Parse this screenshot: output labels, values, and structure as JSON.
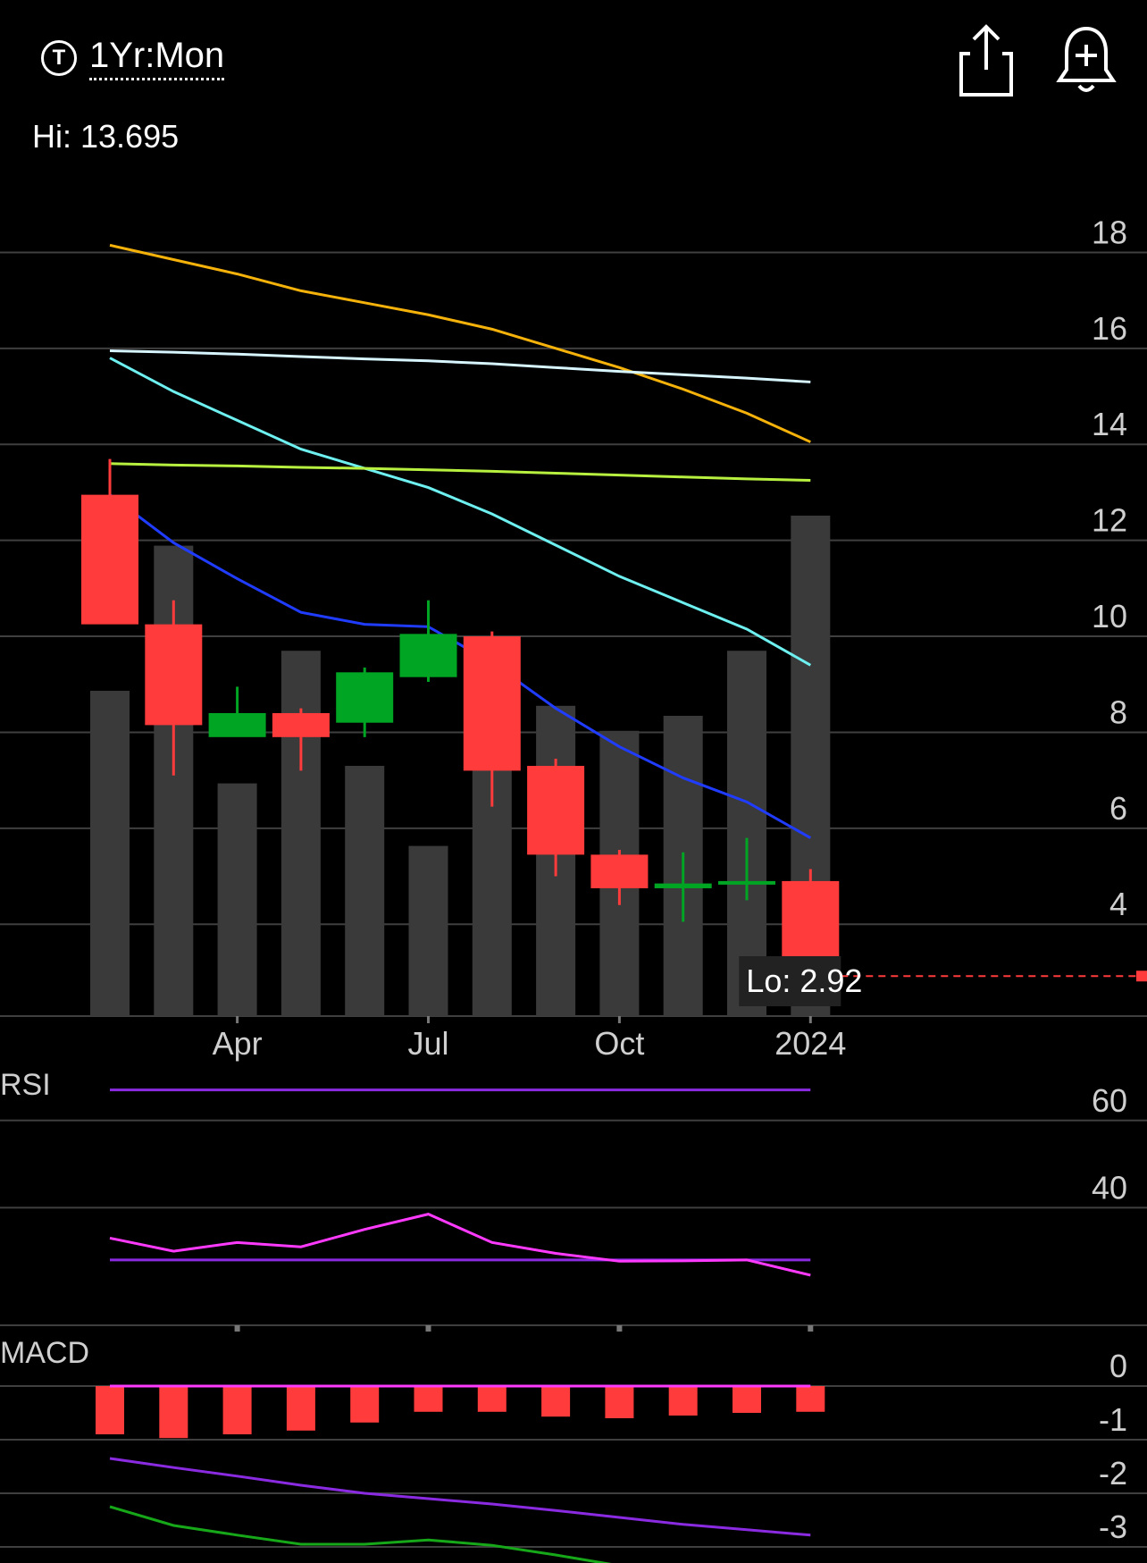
{
  "header": {
    "timeframe_icon": "T",
    "timeframe": "1Yr:Mon",
    "share_icon": "share-icon",
    "alert_icon": "bell-plus-icon"
  },
  "chart_data": {
    "type": "candlestick",
    "hi_label": "Hi: 13.695",
    "lo_label": "Lo: 2.92",
    "x_ticks": [
      "Apr",
      "Jul",
      "Oct",
      "2024"
    ],
    "y_ticks": [
      4,
      6,
      8,
      10,
      12,
      14,
      16,
      18
    ],
    "ylim": [
      1.2,
      19.5
    ],
    "last_price": 2.92,
    "colors": {
      "up": "#00a524",
      "down": "#ff3b3b",
      "volume": "#3a3a3a",
      "grid": "#3f3f3f"
    },
    "candles": [
      {
        "o": 12.95,
        "h": 13.695,
        "l": 10.3,
        "c": 10.25
      },
      {
        "o": 10.25,
        "h": 10.75,
        "l": 7.1,
        "c": 8.15
      },
      {
        "o": 7.9,
        "h": 8.95,
        "l": 7.95,
        "c": 8.4
      },
      {
        "o": 8.4,
        "h": 8.5,
        "l": 7.2,
        "c": 7.9
      },
      {
        "o": 8.2,
        "h": 9.35,
        "l": 7.9,
        "c": 9.25
      },
      {
        "o": 9.15,
        "h": 10.75,
        "l": 9.05,
        "c": 10.05
      },
      {
        "o": 10.0,
        "h": 10.1,
        "l": 6.45,
        "c": 7.2
      },
      {
        "o": 7.3,
        "h": 7.45,
        "l": 5.0,
        "c": 5.45
      },
      {
        "o": 5.45,
        "h": 5.55,
        "l": 4.4,
        "c": 4.75
      },
      {
        "o": 4.75,
        "h": 5.5,
        "l": 4.05,
        "c": 4.85
      },
      {
        "o": 4.85,
        "h": 5.8,
        "l": 4.5,
        "c": 4.9
      },
      {
        "o": 4.9,
        "h": 5.15,
        "l": 2.92,
        "c": 2.92
      }
    ],
    "volume": [
      0.65,
      0.94,
      0.465,
      0.73,
      0.5,
      0.34,
      0.73,
      0.62,
      0.57,
      0.6,
      0.73,
      1.0
    ],
    "moving_averages": [
      {
        "color": "#f5b20a",
        "values": [
          18.15,
          17.85,
          17.55,
          17.2,
          16.95,
          16.7,
          16.4,
          16.0,
          15.6,
          15.15,
          14.65,
          14.05
        ]
      },
      {
        "color": "#d6f5ff",
        "values": [
          15.95,
          15.92,
          15.88,
          15.83,
          15.78,
          15.74,
          15.68,
          15.6,
          15.52,
          15.45,
          15.38,
          15.3
        ]
      },
      {
        "color": "#6ef0f0",
        "values": [
          15.8,
          15.1,
          14.5,
          13.9,
          13.5,
          13.1,
          12.55,
          11.9,
          11.25,
          10.7,
          10.15,
          9.4
        ]
      },
      {
        "color": "#b8f040",
        "values": [
          13.6,
          13.57,
          13.55,
          13.52,
          13.5,
          13.47,
          13.44,
          13.4,
          13.36,
          13.32,
          13.28,
          13.25
        ]
      },
      {
        "color": "#1f3cff",
        "values": [
          12.95,
          11.95,
          11.2,
          10.5,
          10.25,
          10.2,
          9.45,
          8.5,
          7.7,
          7.05,
          6.55,
          5.8
        ]
      }
    ],
    "rsi": {
      "title": "RSI",
      "ticks": [
        40,
        60
      ],
      "ylim": [
        13,
        70
      ],
      "upper_line": 67,
      "lower_line": 28,
      "color": "#ff3aff",
      "guide_color": "#8a2be2",
      "values": [
        33.0,
        30.0,
        32.0,
        31.0,
        35.0,
        38.5,
        32.0,
        29.5,
        27.7,
        27.8,
        28.0,
        24.5
      ]
    },
    "macd": {
      "title": "MACD",
      "ticks": [
        0,
        -1,
        -2,
        -3
      ],
      "ylim": [
        -3.8,
        0.85
      ],
      "histogram": [
        -0.9,
        -0.97,
        -0.9,
        -0.83,
        -0.68,
        -0.48,
        -0.48,
        -0.57,
        -0.6,
        -0.55,
        -0.5,
        -0.48
      ],
      "signal_color": "#ff3aff",
      "signal": [
        0,
        0,
        0,
        0,
        0,
        0,
        0,
        0,
        0,
        0,
        0,
        0
      ],
      "macd_color": "#8a2be2",
      "macd_line": [
        -1.35,
        -1.52,
        -1.68,
        -1.85,
        -2.0,
        -2.1,
        -2.2,
        -2.32,
        -2.45,
        -2.58,
        -2.68,
        -2.78
      ],
      "extra_color": "#17a81a",
      "extra_line": [
        -2.25,
        -2.6,
        -2.78,
        -2.95,
        -2.95,
        -2.87,
        -2.97,
        -3.15,
        -3.35,
        -3.55,
        -3.65,
        -3.7
      ]
    }
  }
}
